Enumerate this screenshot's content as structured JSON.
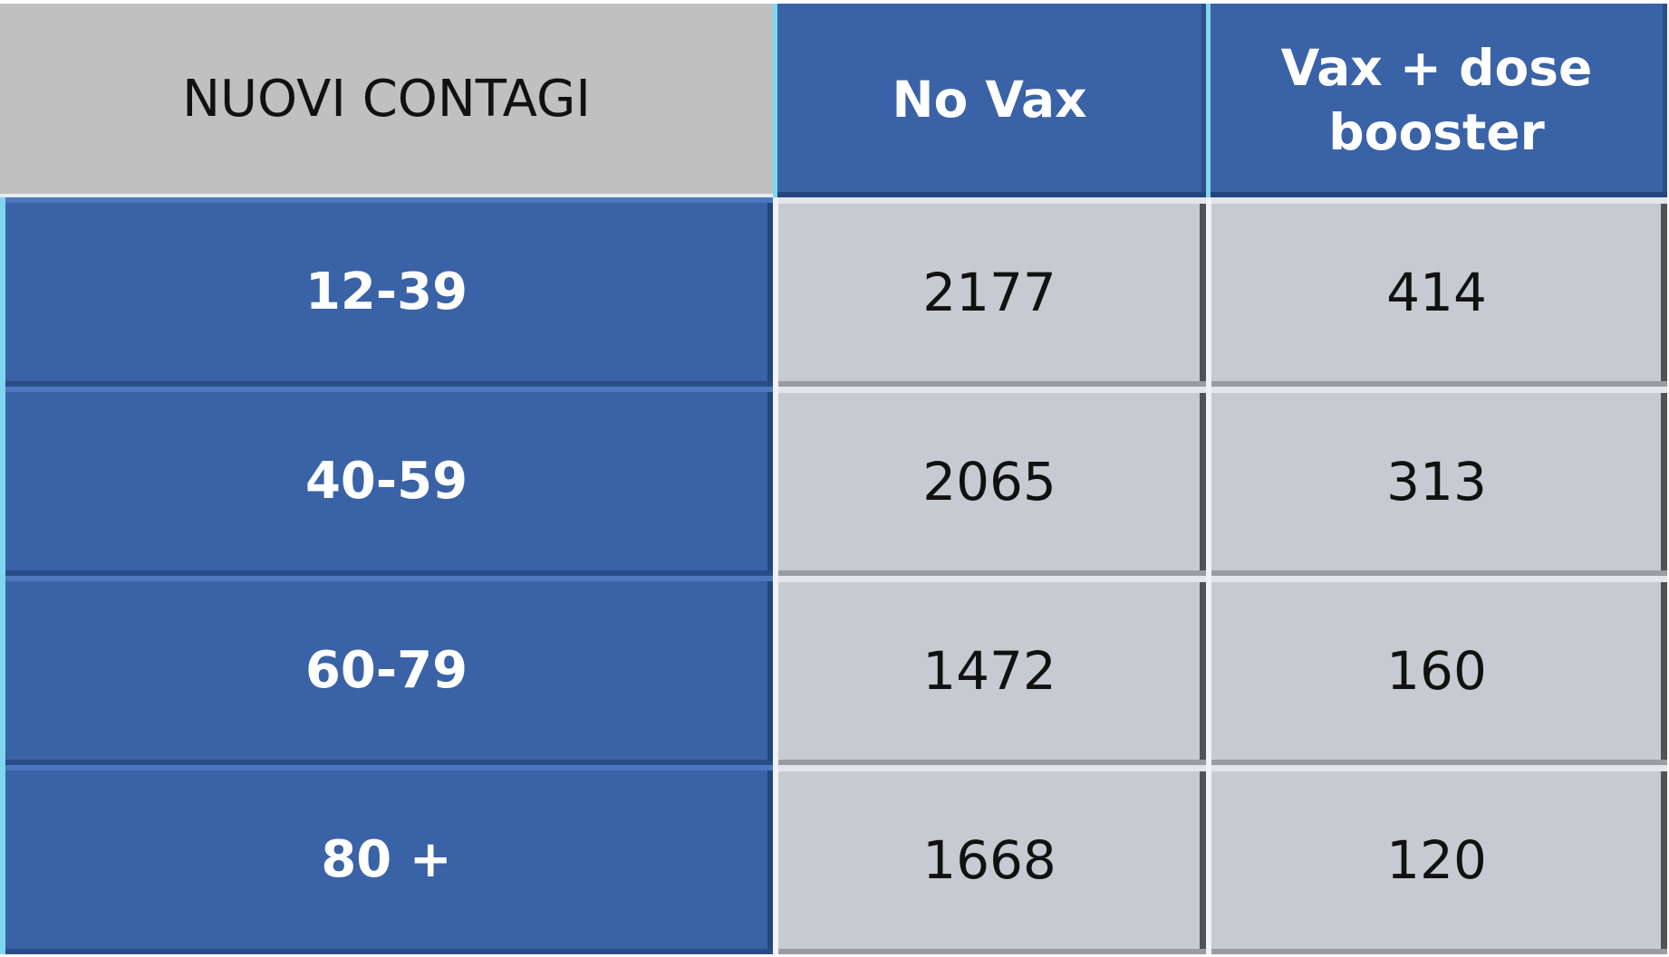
{
  "header": {
    "title": "NUOVI CONTAGI",
    "columns": [
      "No Vax",
      "Vax + dose booster"
    ]
  },
  "table": {
    "rows": [
      {
        "label": "12-39",
        "values": [
          2177,
          414
        ]
      },
      {
        "label": "40-59",
        "values": [
          2065,
          313
        ]
      },
      {
        "label": "60-79",
        "values": [
          1472,
          160
        ]
      },
      {
        "label": "80 +",
        "values": [
          1668,
          120
        ]
      }
    ]
  }
}
